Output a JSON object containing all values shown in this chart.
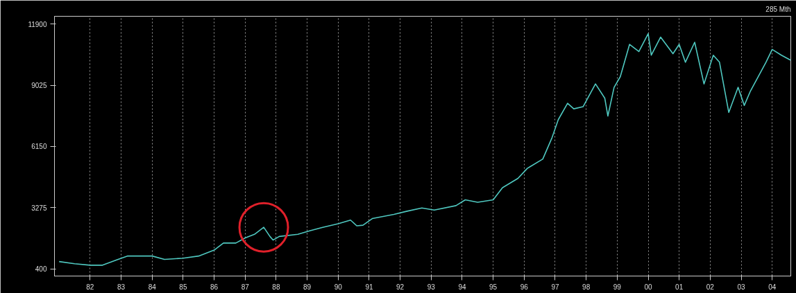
{
  "chart_data": {
    "type": "line",
    "annotations": [
      "285 Mth"
    ],
    "x": [
      1981.0,
      1981.5,
      1982.0,
      1982.4,
      1982.9,
      1983.2,
      1984.0,
      1984.4,
      1985.0,
      1985.5,
      1986.0,
      1986.3,
      1986.7,
      1987.0,
      1987.3,
      1987.6,
      1987.8,
      1987.9,
      1988.1,
      1988.7,
      1989.1,
      1989.5,
      1990.0,
      1990.4,
      1990.6,
      1990.8,
      1991.1,
      1991.8,
      1992.2,
      1992.7,
      1993.1,
      1993.8,
      1994.1,
      1994.5,
      1995.0,
      1995.3,
      1995.8,
      1996.1,
      1996.6,
      1996.9,
      1997.1,
      1997.4,
      1997.6,
      1997.9,
      1998.3,
      1998.6,
      1998.7,
      1998.9,
      1999.1,
      1999.4,
      1999.7,
      2000.0,
      2000.1,
      2000.4,
      2000.8,
      2001.0,
      2001.2,
      2001.5,
      2001.8,
      2002.1,
      2002.3,
      2002.6,
      2002.9,
      2003.1,
      2003.3,
      2003.8,
      2004.0,
      2004.3,
      2004.6
    ],
    "series": [
      {
        "color": "#4fc8c0",
        "values": [
          740,
          640,
          570,
          570,
          840,
          1000,
          1000,
          840,
          900,
          1000,
          1280,
          1610,
          1610,
          1850,
          2020,
          2350,
          1920,
          1750,
          1920,
          2020,
          2190,
          2350,
          2520,
          2690,
          2420,
          2450,
          2760,
          2960,
          3100,
          3260,
          3160,
          3370,
          3640,
          3530,
          3640,
          4210,
          4650,
          5120,
          5560,
          6570,
          7410,
          8180,
          7920,
          8020,
          9090,
          8420,
          7580,
          8930,
          9430,
          10950,
          10610,
          11450,
          10440,
          11290,
          10510,
          10950,
          10110,
          11050,
          9090,
          10440,
          10110,
          7750,
          8930,
          8080,
          8760,
          10110,
          10710,
          10440,
          10200
        ]
      }
    ],
    "xlim": [
      1980.85,
      2004.6
    ],
    "ylim": [
      60,
      12270
    ],
    "xticks": [
      {
        "value": 1982,
        "label": "82"
      },
      {
        "value": 1983,
        "label": "83"
      },
      {
        "value": 1984,
        "label": "84"
      },
      {
        "value": 1985,
        "label": "85"
      },
      {
        "value": 1986,
        "label": "86"
      },
      {
        "value": 1987,
        "label": "87"
      },
      {
        "value": 1988,
        "label": "88"
      },
      {
        "value": 1989,
        "label": "89"
      },
      {
        "value": 1990,
        "label": "90"
      },
      {
        "value": 1991,
        "label": "91"
      },
      {
        "value": 1992,
        "label": "92"
      },
      {
        "value": 1993,
        "label": "93"
      },
      {
        "value": 1994,
        "label": "94"
      },
      {
        "value": 1995,
        "label": "95"
      },
      {
        "value": 1996,
        "label": "96"
      },
      {
        "value": 1997,
        "label": "97"
      },
      {
        "value": 1998,
        "label": "98"
      },
      {
        "value": 1999,
        "label": "99"
      },
      {
        "value": 2000,
        "label": "00"
      },
      {
        "value": 2001,
        "label": "01"
      },
      {
        "value": 2002,
        "label": "02"
      },
      {
        "value": 2003,
        "label": "03"
      },
      {
        "value": 2004,
        "label": "04"
      }
    ],
    "yticks": [
      400,
      3275,
      6150,
      9025,
      11900
    ],
    "grid": "x",
    "marker": "none",
    "line_style": "solid"
  }
}
